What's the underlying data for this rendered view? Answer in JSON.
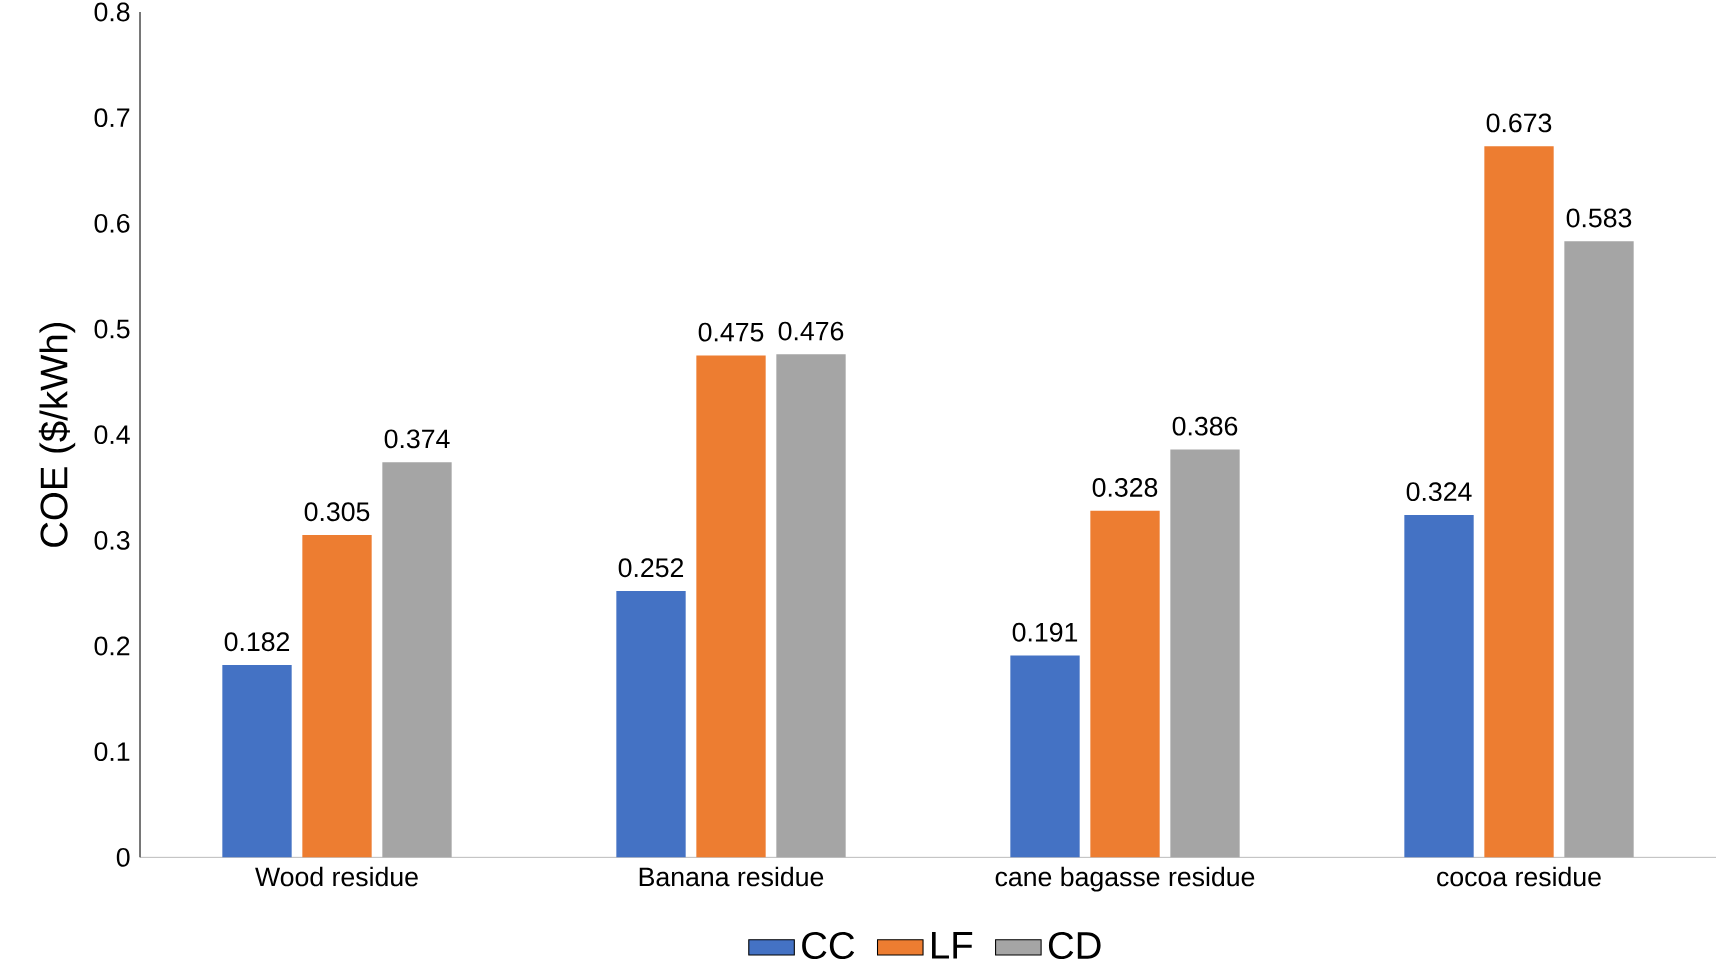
{
  "chart_data": {
    "type": "bar",
    "ylabel": "COE ($/kWh)",
    "categories": [
      "Wood residue",
      "Banana residue",
      "cane bagasse residue",
      "cocoa residue"
    ],
    "series": [
      {
        "name": "CC",
        "color": "#4472c4",
        "values": [
          0.182,
          0.252,
          0.191,
          0.324
        ]
      },
      {
        "name": "LF",
        "color": "#ed7d31",
        "values": [
          0.305,
          0.475,
          0.328,
          0.673
        ]
      },
      {
        "name": "CD",
        "color": "#a5a5a5",
        "values": [
          0.374,
          0.476,
          0.386,
          0.583
        ]
      }
    ],
    "ylim": [
      0,
      0.8
    ],
    "yticks": [
      0,
      0.1,
      0.2,
      0.3,
      0.4,
      0.5,
      0.6,
      0.7,
      0.8
    ],
    "data_labels": true,
    "legend": "bottom",
    "grid": false
  }
}
